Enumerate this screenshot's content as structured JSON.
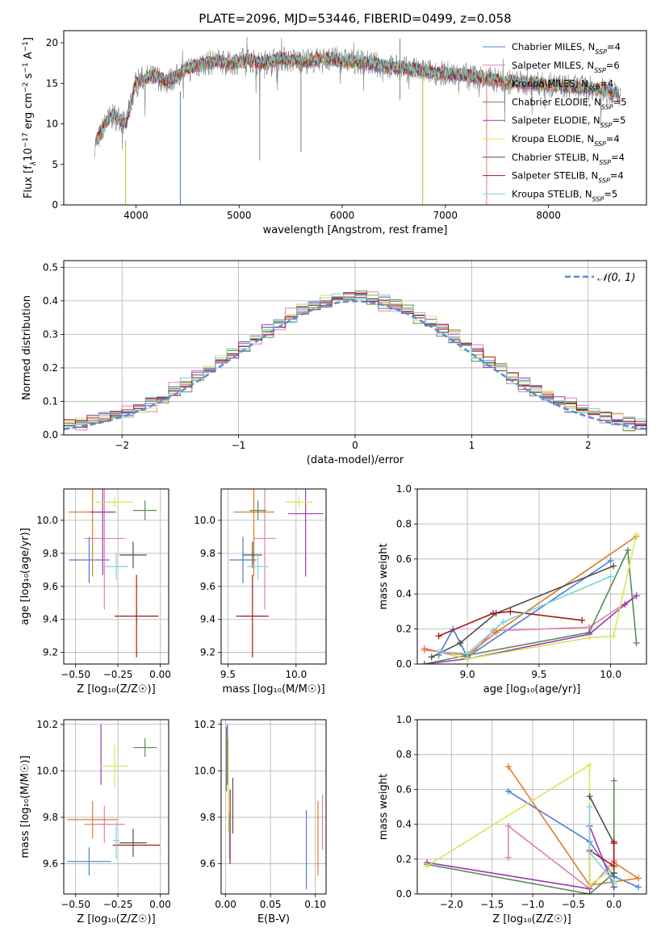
{
  "chart_data": [
    {
      "id": "spectrum",
      "type": "line",
      "title": "PLATE=2096, MJD=53446, FIBERID=0499, z=0.058",
      "xlabel": "wavelength [Angstrom, rest frame]",
      "ylabel_parts": [
        "Flux [f",
        "λ",
        "10",
        "−17",
        " erg cm",
        "−2",
        " s",
        "−1",
        " A",
        "−1",
        "]"
      ],
      "xlim": [
        3300,
        8950
      ],
      "ylim": [
        0,
        21.5
      ],
      "xticks": [
        4000,
        5000,
        6000,
        7000,
        8000
      ],
      "xtick_labels": [
        "4000",
        "5000",
        "6000",
        "7000",
        "8000"
      ],
      "yticks": [
        0,
        5,
        10,
        15,
        20
      ],
      "ytick_labels": [
        "0",
        "5",
        "10",
        "15",
        "20"
      ],
      "grid": false,
      "legend_position": "right",
      "data_range": [
        3600,
        8700
      ],
      "envelope": {
        "x": [
          3600,
          3650,
          3700,
          3750,
          3800,
          3850,
          3900,
          3950,
          4000,
          4100,
          4200,
          4300,
          4400,
          4500,
          4600,
          4700,
          4800,
          4900,
          5000,
          5100,
          5200,
          5300,
          5400,
          5500,
          5600,
          5700,
          5800,
          5900,
          6000,
          6200,
          6400,
          6600,
          6800,
          7000,
          7200,
          7400,
          7600,
          7800,
          8000,
          8200,
          8400,
          8600,
          8700
        ],
        "y": [
          7.5,
          8.5,
          10.0,
          10.8,
          11.0,
          10.5,
          10.0,
          12.5,
          15.3,
          15.7,
          15.8,
          15.2,
          15.9,
          16.8,
          17.2,
          17.5,
          17.8,
          17.4,
          17.7,
          17.9,
          17.4,
          17.8,
          18.0,
          17.9,
          17.8,
          17.7,
          18.1,
          18.0,
          17.8,
          17.6,
          17.2,
          16.8,
          16.5,
          16.2,
          16.0,
          15.6,
          15.2,
          15.0,
          14.8,
          14.6,
          14.4,
          14.0,
          13.5
        ]
      },
      "spikes": [
        {
          "x": 3900,
          "ybottom": 0,
          "ytop": 8,
          "color": "#BCBD22"
        },
        {
          "x": 4430,
          "ybottom": 0,
          "ytop": 14,
          "color": "#4A7FD0"
        },
        {
          "x": 5200,
          "ybottom": 5.5,
          "ytop": 18,
          "color": "#808080"
        },
        {
          "x": 5600,
          "ybottom": 6.5,
          "ytop": 18,
          "color": "#808080"
        },
        {
          "x": 6560,
          "ybottom": 13,
          "ytop": 20.5,
          "color": "#808080"
        },
        {
          "x": 6780,
          "ybottom": 0,
          "ytop": 16,
          "color": "#BCBD22"
        },
        {
          "x": 7400,
          "ybottom": 0,
          "ytop": 15.5,
          "color": "#E07A7A"
        }
      ],
      "series": [
        {
          "name": "Chabrier MILES, N",
          "sub": "SSP",
          "eq": "=4",
          "color": "#4A7FD0"
        },
        {
          "name": "Salpeter MILES, N",
          "sub": "SSP",
          "eq": "=6",
          "color": "#E07FB5"
        },
        {
          "name": "Kroupa MILES, N",
          "sub": "SSP",
          "eq": "=4",
          "color": "#E07A2A"
        },
        {
          "name": "Chabrier ELODIE, N",
          "sub": "SSP",
          "eq": "=5",
          "color": "#5A8A5A"
        },
        {
          "name": "Salpeter ELODIE, N",
          "sub": "SSP",
          "eq": "=5",
          "color": "#9A3AB0"
        },
        {
          "name": "Kroupa ELODIE, N",
          "sub": "SSP",
          "eq": "=4",
          "color": "#D4E855"
        },
        {
          "name": "Chabrier STELIB, N",
          "sub": "SSP",
          "eq": "=4",
          "color": "#505050"
        },
        {
          "name": "Salpeter STELIB, N",
          "sub": "SSP",
          "eq": "=4",
          "color": "#A81818"
        },
        {
          "name": "Kroupa STELIB, N",
          "sub": "SSP",
          "eq": "=5",
          "color": "#7DD3D8"
        }
      ],
      "observed_color": "#808080"
    },
    {
      "id": "residuals",
      "type": "line",
      "xlabel": "(data-model)/error",
      "ylabel": "Normed distribution",
      "xlim": [
        -2.5,
        2.5
      ],
      "ylim": [
        0,
        0.52
      ],
      "xticks": [
        -2,
        -1,
        0,
        1,
        2
      ],
      "xtick_labels": [
        "−2",
        "−1",
        "0",
        "1",
        "2"
      ],
      "yticks": [
        0,
        0.1,
        0.2,
        0.3,
        0.4,
        0.5
      ],
      "ytick_labels": [
        "0.0",
        "0.1",
        "0.2",
        "0.3",
        "0.4",
        "0.5"
      ],
      "grid": true,
      "legend_position": "top-right",
      "gauss_label": "𝒩(0, 1)",
      "gauss_color": "#5A8AD8",
      "bin_width": 0.1,
      "bin_start": -2.5,
      "series_colors": [
        "#4A7FD0",
        "#E07FB5",
        "#E07A2A",
        "#5A8A5A",
        "#9A3AB0",
        "#D4E855",
        "#505050",
        "#A81818",
        "#7DD3D8"
      ],
      "hist_jitter": [
        0.012,
        0.03,
        0.004,
        0.025,
        0.018,
        0.02,
        0.01,
        0.015,
        0.02
      ]
    },
    {
      "id": "age-vs-z",
      "type": "scatter",
      "xlabel": "Z [log₁₀(Z/Z☉)]",
      "ylabel": "age  [log₁₀(age/yr)]",
      "xlim": [
        -0.57,
        0.05
      ],
      "ylim": [
        9.13,
        10.19
      ],
      "xticks": [
        -0.5,
        -0.25,
        0.0
      ],
      "xtick_labels": [
        "−0.50",
        "−0.25",
        "0.00"
      ],
      "yticks": [
        9.2,
        9.4,
        9.6,
        9.8,
        10.0
      ],
      "ytick_labels": [
        "9.2",
        "9.4",
        "9.6",
        "9.8",
        "10.0"
      ],
      "grid": true,
      "points": [
        {
          "x": -0.42,
          "xerr": 0.12,
          "y": 9.76,
          "yerr": 0.14,
          "color": "#4A7FD0"
        },
        {
          "x": -0.33,
          "xerr": 0.12,
          "y": 9.89,
          "yerr": 0.43,
          "color": "#E07FB5"
        },
        {
          "x": -0.4,
          "xerr": 0.14,
          "y": 10.05,
          "yerr": 0.39,
          "color": "#E07A2A"
        },
        {
          "x": -0.09,
          "xerr": 0.07,
          "y": 10.06,
          "yerr": 0.06,
          "color": "#5A8A5A"
        },
        {
          "x": -0.34,
          "xerr": 0.07,
          "y": 10.05,
          "yerr": 0.38,
          "color": "#9A3AB0"
        },
        {
          "x": -0.27,
          "xerr": 0.11,
          "y": 10.11,
          "yerr": 0.03,
          "color": "#D4E855"
        },
        {
          "x": -0.16,
          "xerr": 0.08,
          "y": 9.79,
          "yerr": 0.08,
          "color": "#505050"
        },
        {
          "x": -0.14,
          "xerr": 0.13,
          "y": 9.42,
          "yerr": 0.25,
          "color": "#A81818"
        },
        {
          "x": -0.26,
          "xerr": 0.07,
          "y": 9.72,
          "yerr": 0.08,
          "color": "#7DD3D8"
        }
      ]
    },
    {
      "id": "age-vs-mass",
      "type": "scatter",
      "xlabel": "mass [log₁₀(M/M☉)]",
      "ylabel": "",
      "xlim": [
        9.45,
        10.22
      ],
      "ylim": [
        9.13,
        10.19
      ],
      "xticks": [
        9.5,
        10.0
      ],
      "xtick_labels": [
        "9.5",
        "10.0"
      ],
      "yticks": [
        9.2,
        9.4,
        9.6,
        9.8,
        10.0
      ],
      "ytick_labels": [
        "9.2",
        "9.4",
        "9.6",
        "9.8",
        "10.0"
      ],
      "grid": true,
      "points": [
        {
          "x": 9.61,
          "xerr": 0.1,
          "y": 9.76,
          "yerr": 0.14,
          "color": "#4A7FD0"
        },
        {
          "x": 9.77,
          "xerr": 0.08,
          "y": 9.89,
          "yerr": 0.43,
          "color": "#E07FB5"
        },
        {
          "x": 9.69,
          "xerr": 0.15,
          "y": 10.05,
          "yerr": 0.39,
          "color": "#E07A2A"
        },
        {
          "x": 9.72,
          "xerr": 0.06,
          "y": 10.06,
          "yerr": 0.06,
          "color": "#5A8A5A"
        },
        {
          "x": 10.07,
          "xerr": 0.13,
          "y": 10.04,
          "yerr": 0.38,
          "color": "#9A3AB0"
        },
        {
          "x": 10.02,
          "xerr": 0.1,
          "y": 10.11,
          "yerr": 0.03,
          "color": "#D4E855"
        },
        {
          "x": 9.68,
          "xerr": 0.07,
          "y": 9.79,
          "yerr": 0.08,
          "color": "#505050"
        },
        {
          "x": 9.68,
          "xerr": 0.12,
          "y": 9.42,
          "yerr": 0.25,
          "color": "#A81818"
        },
        {
          "x": 9.72,
          "xerr": 0.08,
          "y": 9.72,
          "yerr": 0.08,
          "color": "#7DD3D8"
        }
      ]
    },
    {
      "id": "weight-vs-age",
      "type": "line",
      "xlabel": "age  [log₁₀(age/yr)]",
      "ylabel": "mass weight",
      "xlim": [
        8.65,
        10.25
      ],
      "ylim": [
        0,
        1.0
      ],
      "xticks": [
        9.0,
        9.5,
        10.0
      ],
      "xtick_labels": [
        "9.0",
        "9.5",
        "10.0"
      ],
      "yticks": [
        0,
        0.2,
        0.4,
        0.6,
        0.8,
        1.0
      ],
      "ytick_labels": [
        "0.0",
        "0.2",
        "0.4",
        "0.6",
        "0.8",
        "1.0"
      ],
      "grid": true,
      "series": [
        {
          "color": "#4A7FD0",
          "x": [
            8.8,
            8.9,
            9.0,
            10.0
          ],
          "y": [
            0.05,
            0.2,
            0.04,
            0.59
          ]
        },
        {
          "color": "#E07FB5",
          "x": [
            8.7,
            9.0,
            9.18,
            9.85,
            10.18
          ],
          "y": [
            0.09,
            0.03,
            0.19,
            0.21,
            0.39
          ]
        },
        {
          "color": "#E07A2A",
          "x": [
            8.7,
            9.0,
            9.2,
            10.18
          ],
          "y": [
            0.08,
            0.05,
            0.18,
            0.73
          ]
        },
        {
          "color": "#5A8A5A",
          "x": [
            8.7,
            9.0,
            9.85,
            10.12,
            10.18
          ],
          "y": [
            0.0,
            0.05,
            0.18,
            0.65,
            0.12
          ]
        },
        {
          "color": "#9A3AB0",
          "x": [
            8.7,
            9.0,
            9.85,
            10.1,
            10.18
          ],
          "y": [
            0.0,
            0.03,
            0.17,
            0.34,
            0.39
          ]
        },
        {
          "color": "#D4E855",
          "x": [
            8.9,
            9.0,
            9.85,
            10.02,
            10.18
          ],
          "y": [
            0.05,
            0.03,
            0.15,
            0.16,
            0.74
          ]
        },
        {
          "color": "#505050",
          "x": [
            8.75,
            8.95,
            9.2,
            10.02
          ],
          "y": [
            0.04,
            0.12,
            0.29,
            0.56
          ]
        },
        {
          "color": "#A81818",
          "x": [
            8.8,
            9.18,
            9.3,
            9.8
          ],
          "y": [
            0.16,
            0.29,
            0.3,
            0.25
          ]
        },
        {
          "color": "#7DD3D8",
          "x": [
            8.8,
            9.0,
            9.25,
            10.0
          ],
          "y": [
            0.07,
            0.06,
            0.24,
            0.5
          ]
        }
      ]
    },
    {
      "id": "mass-vs-z",
      "type": "scatter",
      "xlabel": "Z [log₁₀(Z/Z☉)]",
      "ylabel": "mass [log₁₀(M/M☉)]",
      "xlim": [
        -0.57,
        0.05
      ],
      "ylim": [
        9.47,
        10.22
      ],
      "xticks": [
        -0.5,
        -0.25,
        0.0
      ],
      "xtick_labels": [
        "−0.50",
        "−0.25",
        "0.00"
      ],
      "yticks": [
        9.6,
        9.8,
        10.0,
        10.2
      ],
      "ytick_labels": [
        "9.6",
        "9.8",
        "10.0",
        "10.2"
      ],
      "grid": true,
      "points": [
        {
          "x": -0.42,
          "xerr": 0.13,
          "y": 9.61,
          "yerr": 0.06,
          "color": "#4A7FD0"
        },
        {
          "x": -0.33,
          "xerr": 0.12,
          "y": 9.77,
          "yerr": 0.08,
          "color": "#E07FB5"
        },
        {
          "x": -0.4,
          "xerr": 0.15,
          "y": 9.79,
          "yerr": 0.08,
          "color": "#E07A2A"
        },
        {
          "x": -0.09,
          "xerr": 0.07,
          "y": 10.1,
          "yerr": 0.04,
          "color": "#5A8A5A"
        },
        {
          "x": -0.35,
          "xerr": 0.0,
          "y": 10.07,
          "yerr": 0.13,
          "color": "#9A3AB0"
        },
        {
          "x": -0.27,
          "xerr": 0.08,
          "y": 10.02,
          "yerr": 0.09,
          "color": "#D4E855"
        },
        {
          "x": -0.16,
          "xerr": 0.08,
          "y": 9.69,
          "yerr": 0.06,
          "color": "#505050"
        },
        {
          "x": -0.14,
          "xerr": 0.14,
          "y": 9.68,
          "yerr": 0.0,
          "color": "#A81818"
        },
        {
          "x": -0.26,
          "xerr": 0.02,
          "y": 9.7,
          "yerr": 0.08,
          "color": "#7DD3D8"
        }
      ]
    },
    {
      "id": "mass-vs-ebv",
      "type": "scatter",
      "xlabel": "E(B-V)",
      "ylabel": "",
      "xlim": [
        -0.005,
        0.112
      ],
      "ylim": [
        9.47,
        10.22
      ],
      "xticks": [
        0.0,
        0.05,
        0.1
      ],
      "xtick_labels": [
        "0.00",
        "0.05",
        "0.10"
      ],
      "yticks": [
        9.6,
        9.8,
        10.0,
        10.2
      ],
      "ytick_labels": [
        "9.6",
        "9.8",
        "10.0",
        "10.2"
      ],
      "grid": true,
      "points": [
        {
          "x": 0.09,
          "y": 9.66,
          "yerr": 0.17,
          "color": "#4A7FD0"
        },
        {
          "x": 0.108,
          "y": 9.78,
          "yerr": 0.12,
          "color": "#E07FB5"
        },
        {
          "x": 0.103,
          "y": 9.71,
          "yerr": 0.16,
          "color": "#E07A2A"
        },
        {
          "x": 0.001,
          "y": 10.05,
          "yerr": 0.14,
          "color": "#5A8A5A"
        },
        {
          "x": 0.002,
          "y": 10.07,
          "yerr": 0.13,
          "color": "#9A3AB0"
        },
        {
          "x": 0.003,
          "y": 9.94,
          "yerr": 0.2,
          "color": "#D4E855"
        },
        {
          "x": 0.008,
          "y": 9.85,
          "yerr": 0.12,
          "color": "#505050"
        },
        {
          "x": 0.005,
          "y": 9.76,
          "yerr": 0.16,
          "color": "#A81818"
        },
        {
          "x": 0.004,
          "y": 9.72,
          "yerr": 0.1,
          "color": "#7DD3D8"
        }
      ]
    },
    {
      "id": "weight-vs-z",
      "type": "line",
      "xlabel": "Z [log₁₀(Z/Z☉)]",
      "ylabel": "mass weight",
      "xlim": [
        -2.42,
        0.4
      ],
      "ylim": [
        0,
        1.0
      ],
      "xticks": [
        -2.0,
        -1.5,
        -1.0,
        -0.5,
        0.0
      ],
      "xtick_labels": [
        "−2.0",
        "−1.5",
        "−1.0",
        "−0.5",
        "0.0"
      ],
      "yticks": [
        0,
        0.2,
        0.4,
        0.6,
        0.8,
        1.0
      ],
      "ytick_labels": [
        "0.0",
        "0.2",
        "0.4",
        "0.6",
        "0.8",
        "1.0"
      ],
      "grid": true,
      "series": [
        {
          "color": "#4A7FD0",
          "x": [
            -1.3,
            -0.3,
            0.0,
            0.3
          ],
          "y": [
            0.59,
            0.3,
            0.1,
            0.04
          ]
        },
        {
          "color": "#E07FB5",
          "x": [
            -1.3,
            -1.3,
            -0.3,
            0.0
          ],
          "y": [
            0.21,
            0.39,
            0.03,
            0.19
          ]
        },
        {
          "color": "#E07A2A",
          "x": [
            -1.3,
            -0.3,
            0.3,
            0.0
          ],
          "y": [
            0.73,
            0.05,
            0.09,
            0.18
          ]
        },
        {
          "color": "#5A8A5A",
          "x": [
            -2.3,
            -0.3,
            0.0,
            0.0
          ],
          "y": [
            0.17,
            0.0,
            0.12,
            0.65
          ]
        },
        {
          "color": "#9A3AB0",
          "x": [
            -2.3,
            -0.3,
            -0.3,
            0.0
          ],
          "y": [
            0.18,
            0.03,
            0.39,
            0.04
          ]
        },
        {
          "color": "#D4E855",
          "x": [
            -2.3,
            -0.3,
            -0.3,
            0.0
          ],
          "y": [
            0.16,
            0.74,
            0.05,
            0.15
          ]
        },
        {
          "color": "#505050",
          "x": [
            -0.3,
            0.0,
            0.0,
            0.0
          ],
          "y": [
            0.56,
            0.29,
            0.12,
            0.04
          ]
        },
        {
          "color": "#A81818",
          "x": [
            -0.3,
            0.0,
            0.0,
            0.0
          ],
          "y": [
            0.25,
            0.16,
            0.29,
            0.3
          ]
        },
        {
          "color": "#7DD3D8",
          "x": [
            -0.3,
            -0.3,
            0.0,
            0.0
          ],
          "y": [
            0.5,
            0.24,
            0.07,
            0.06
          ]
        }
      ]
    }
  ]
}
